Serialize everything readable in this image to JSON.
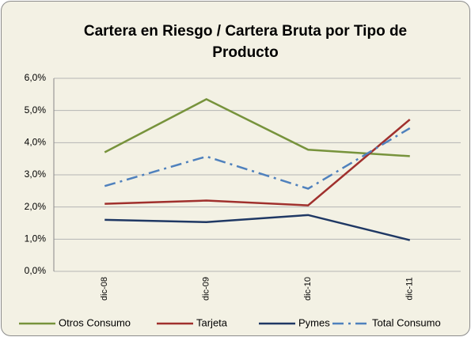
{
  "chart_data": {
    "type": "line",
    "title": "Cartera en Riesgo / Cartera Bruta por Tipo de Producto",
    "categories": [
      "dic-08",
      "dic-09",
      "dic-10",
      "dic-11"
    ],
    "series": [
      {
        "name": "Otros Consumo",
        "color": "#77933c",
        "style": "solid",
        "values": [
          3.7,
          5.35,
          3.78,
          3.58
        ]
      },
      {
        "name": "Tarjeta",
        "color": "#a0302d",
        "style": "solid",
        "values": [
          2.1,
          2.2,
          2.05,
          4.72
        ]
      },
      {
        "name": "Pymes",
        "color": "#1f3864",
        "style": "solid",
        "values": [
          1.6,
          1.53,
          1.75,
          0.97
        ]
      },
      {
        "name": "Total Consumo",
        "color": "#4f81bd",
        "style": "dash-dot",
        "values": [
          2.65,
          3.57,
          2.57,
          4.45
        ]
      }
    ],
    "ylim": [
      0,
      6
    ],
    "yticks": [
      {
        "value": 0,
        "label": "0,0%"
      },
      {
        "value": 1,
        "label": "1,0%"
      },
      {
        "value": 2,
        "label": "2,0%"
      },
      {
        "value": 3,
        "label": "3,0%"
      },
      {
        "value": 4,
        "label": "4,0%"
      },
      {
        "value": 5,
        "label": "5,0%"
      },
      {
        "value": 6,
        "label": "6,0%"
      }
    ],
    "grid": true,
    "legend": "bottom"
  }
}
